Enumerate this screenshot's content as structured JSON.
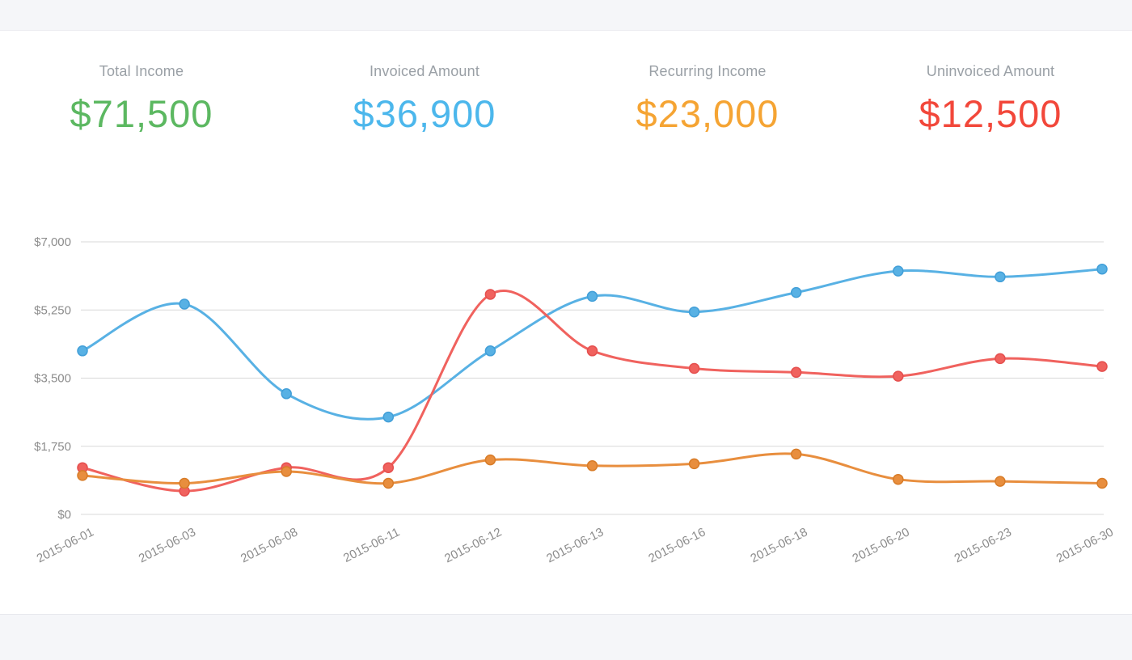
{
  "page": {
    "background_color": "#f5f6f9",
    "panel_color": "#ffffff"
  },
  "stats": [
    {
      "label": "Total Income",
      "value": "$71,500",
      "color": "#5cb861"
    },
    {
      "label": "Invoiced Amount",
      "value": "$36,900",
      "color": "#4cb7ec"
    },
    {
      "label": "Recurring Income",
      "value": "$23,000",
      "color": "#f5a433"
    },
    {
      "label": "Uninvoiced Amount",
      "value": "$12,500",
      "color": "#f2473a"
    }
  ],
  "chart_data": {
    "type": "line",
    "title": "",
    "xlabel": "",
    "ylabel": "",
    "categories": [
      "2015-06-01",
      "2015-06-03",
      "2015-06-08",
      "2015-06-11",
      "2015-06-12",
      "2015-06-13",
      "2015-06-16",
      "2015-06-18",
      "2015-06-20",
      "2015-06-23",
      "2015-06-30"
    ],
    "series": [
      {
        "name": "blue-series",
        "color": "#58b1e4",
        "point_stroke": "#429fd8",
        "values": [
          4200,
          5400,
          3100,
          2500,
          4200,
          5600,
          5200,
          5700,
          6250,
          6100,
          6300
        ]
      },
      {
        "name": "red-series",
        "color": "#f0625e",
        "point_stroke": "#e54f4e",
        "values": [
          1200,
          600,
          1200,
          1200,
          5650,
          4200,
          3750,
          3650,
          3550,
          4000,
          3800
        ]
      },
      {
        "name": "orange-series",
        "color": "#e88e3e",
        "point_stroke": "#d87c28",
        "values": [
          1000,
          800,
          1100,
          800,
          1400,
          1250,
          1300,
          1550,
          900,
          850,
          800
        ]
      }
    ],
    "ylim": [
      0,
      7000
    ],
    "yticks": [
      0,
      1750,
      3500,
      5250,
      7000
    ],
    "ytick_labels": [
      "$0",
      "$1,750",
      "$3,500",
      "$5,250",
      "$7,000"
    ],
    "grid": true,
    "grid_color": "#d8d8d8",
    "tick_text_color": "#8c8c8c",
    "legend": "none"
  }
}
